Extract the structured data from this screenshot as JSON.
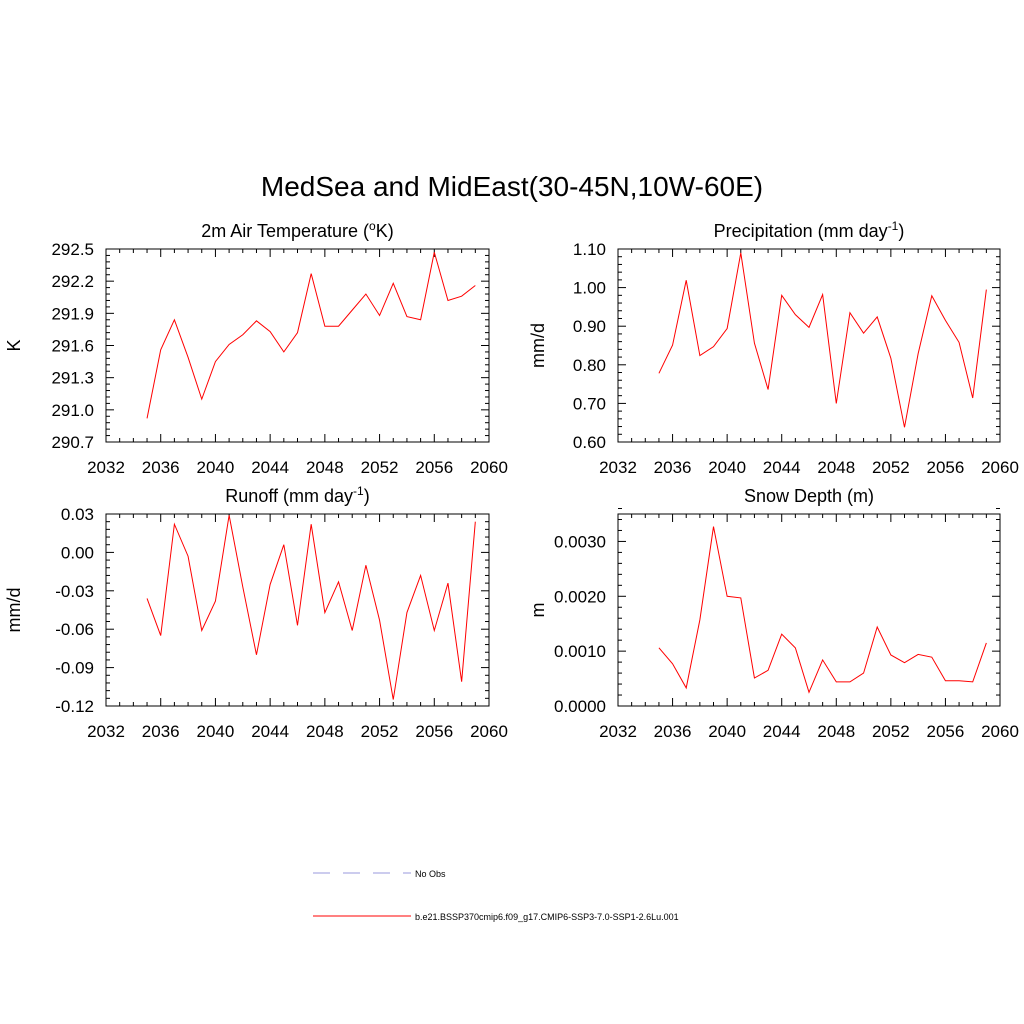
{
  "figure": {
    "title": "MedSea and MidEast(30-45N,10W-60E)"
  },
  "legend": {
    "items": [
      {
        "label": "No Obs",
        "color": "#9999dd",
        "style": "dashed"
      },
      {
        "label": "b.e21.BSSP370cmip6.f09_g17.CMIP6-SSP3-7.0-SSP1-2.6Lu.001",
        "color": "#ff0000",
        "style": "solid"
      }
    ]
  },
  "chart_data": [
    {
      "type": "line",
      "title_main": "2m Air Temperature (",
      "title_sup": "o",
      "title_tail": "K)",
      "ylabel": "K",
      "xlim": [
        2032,
        2060
      ],
      "ylim": [
        290.7,
        292.5
      ],
      "xticks": [
        2032,
        2036,
        2040,
        2044,
        2048,
        2052,
        2056,
        2060
      ],
      "yticks": [
        "290.7",
        "291.0",
        "291.3",
        "291.6",
        "291.9",
        "292.2",
        "292.5"
      ],
      "x": [
        2035,
        2036,
        2037,
        2038,
        2039,
        2040,
        2041,
        2042,
        2043,
        2044,
        2045,
        2046,
        2047,
        2048,
        2049,
        2050,
        2051,
        2052,
        2053,
        2054,
        2055,
        2056,
        2057,
        2058,
        2059
      ],
      "series": [
        {
          "color": "#ff0000",
          "values": [
            290.92,
            291.56,
            291.84,
            291.49,
            291.1,
            291.45,
            291.61,
            291.7,
            291.83,
            291.73,
            291.54,
            291.72,
            292.27,
            291.78,
            291.78,
            291.93,
            292.08,
            291.88,
            292.18,
            291.87,
            291.84,
            292.47,
            292.02,
            292.06,
            292.16
          ]
        }
      ]
    },
    {
      "type": "line",
      "title_main": "Precipitation (mm day",
      "title_sup": "-1",
      "title_tail": ")",
      "ylabel": "mm/d",
      "xlim": [
        2032,
        2060
      ],
      "ylim": [
        0.6,
        1.1
      ],
      "xticks": [
        2032,
        2036,
        2040,
        2044,
        2048,
        2052,
        2056,
        2060
      ],
      "yticks": [
        "0.60",
        "0.70",
        "0.80",
        "0.90",
        "1.00",
        "1.10"
      ],
      "x": [
        2035,
        2036,
        2037,
        2038,
        2039,
        2040,
        2041,
        2042,
        2043,
        2044,
        2045,
        2046,
        2047,
        2048,
        2049,
        2050,
        2051,
        2052,
        2053,
        2054,
        2055,
        2056,
        2057,
        2058,
        2059
      ],
      "series": [
        {
          "color": "#ff0000",
          "values": [
            0.778,
            0.851,
            1.019,
            0.824,
            0.847,
            0.894,
            1.09,
            0.856,
            0.736,
            0.98,
            0.93,
            0.897,
            0.982,
            0.7,
            0.935,
            0.882,
            0.924,
            0.817,
            0.638,
            0.829,
            0.979,
            0.915,
            0.858,
            0.714,
            0.995
          ]
        }
      ]
    },
    {
      "type": "line",
      "title_main": "Runoff (mm day",
      "title_sup": "-1",
      "title_tail": ")",
      "ylabel": "mm/d",
      "xlim": [
        2032,
        2060
      ],
      "ylim": [
        -0.12,
        0.03
      ],
      "xticks": [
        2032,
        2036,
        2040,
        2044,
        2048,
        2052,
        2056,
        2060
      ],
      "yticks": [
        "-0.12",
        "-0.09",
        "-0.06",
        "-0.03",
        "0.00",
        "0.03"
      ],
      "x": [
        2035,
        2036,
        2037,
        2038,
        2039,
        2040,
        2041,
        2042,
        2043,
        2044,
        2045,
        2046,
        2047,
        2048,
        2049,
        2050,
        2051,
        2052,
        2053,
        2054,
        2055,
        2056,
        2057,
        2058,
        2059
      ],
      "series": [
        {
          "color": "#ff0000",
          "values": [
            -0.036,
            -0.065,
            0.022,
            -0.003,
            -0.061,
            -0.038,
            0.029,
            -0.027,
            -0.08,
            -0.025,
            0.006,
            -0.057,
            0.022,
            -0.047,
            -0.023,
            -0.061,
            -0.01,
            -0.053,
            -0.115,
            -0.047,
            -0.018,
            -0.061,
            -0.024,
            -0.101,
            0.024
          ]
        }
      ]
    },
    {
      "type": "line",
      "title_main": "Snow Depth (m)",
      "title_sup": "",
      "title_tail": "",
      "ylabel": "m",
      "xlim": [
        2032,
        2060
      ],
      "ylim": [
        0.0,
        0.0035
      ],
      "xticks": [
        2032,
        2036,
        2040,
        2044,
        2048,
        2052,
        2056,
        2060
      ],
      "yticks": [
        "0.0000",
        "0.0010",
        "0.0020",
        "0.0030"
      ],
      "x": [
        2035,
        2036,
        2037,
        2038,
        2039,
        2040,
        2041,
        2042,
        2043,
        2044,
        2045,
        2046,
        2047,
        2048,
        2049,
        2050,
        2051,
        2052,
        2053,
        2054,
        2055,
        2056,
        2057,
        2058,
        2059
      ],
      "series": [
        {
          "color": "#ff0000",
          "values": [
            0.00106,
            0.00077,
            0.00033,
            0.00157,
            0.00327,
            0.002,
            0.00197,
            0.00051,
            0.00065,
            0.00131,
            0.00106,
            0.00025,
            0.00084,
            0.00044,
            0.00044,
            0.0006,
            0.00144,
            0.00093,
            0.00079,
            0.00094,
            0.00089,
            0.00046,
            0.00046,
            0.00044,
            0.00115
          ]
        }
      ]
    }
  ]
}
